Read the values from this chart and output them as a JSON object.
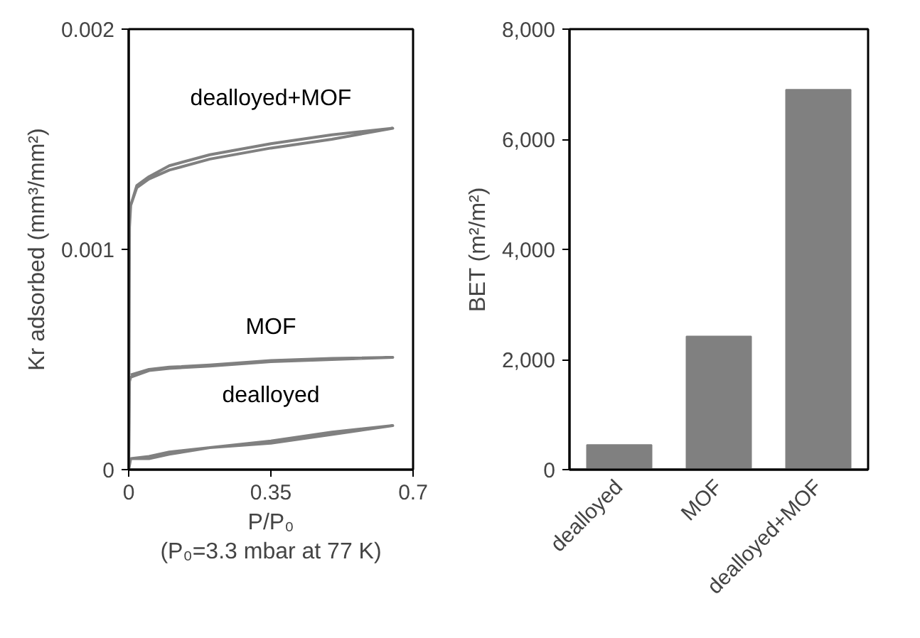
{
  "chart_data": [
    {
      "type": "line",
      "xlabel": "P/P₀\n(P₀=3.3 mbar at 77 K)",
      "ylabel": "Kr adsorbed (mm³/mm²)",
      "xlim": [
        0,
        0.7
      ],
      "ylim": [
        0,
        0.002
      ],
      "xticks": [
        0,
        0.35,
        0.7
      ],
      "yticks": [
        0,
        0.001,
        0.002
      ],
      "grid": false,
      "marker": "none",
      "line_style": "solid",
      "series": [
        {
          "name": "dealloyed+MOF",
          "color": "#808080",
          "x": [
            0,
            0.002,
            0.005,
            0.02,
            0.05,
            0.1,
            0.2,
            0.35,
            0.5,
            0.65,
            0.5,
            0.35,
            0.2,
            0.1,
            0.05,
            0.02,
            0.005
          ],
          "values": [
            0,
            0.0011,
            0.0012,
            0.00128,
            0.00132,
            0.00136,
            0.00141,
            0.00146,
            0.0015,
            0.00155,
            0.00152,
            0.00148,
            0.00143,
            0.00138,
            0.00133,
            0.00129,
            0.0012
          ]
        },
        {
          "name": "MOF",
          "color": "#808080",
          "x": [
            0,
            0.002,
            0.005,
            0.05,
            0.1,
            0.2,
            0.35,
            0.5,
            0.65,
            0.5,
            0.35,
            0.2,
            0.1,
            0.05,
            0.005
          ],
          "values": [
            0,
            0.0004,
            0.00042,
            0.00045,
            0.00046,
            0.00047,
            0.00049,
            0.0005,
            0.00051,
            0.000505,
            0.000495,
            0.000475,
            0.000465,
            0.000455,
            0.00043
          ]
        },
        {
          "name": "dealloyed",
          "color": "#808080",
          "x": [
            0,
            0.005,
            0.05,
            0.1,
            0.2,
            0.35,
            0.5,
            0.65,
            0.5,
            0.35,
            0.2,
            0.1,
            0.05,
            0.005
          ],
          "values": [
            0,
            5e-05,
            5e-05,
            7e-05,
            0.0001,
            0.00012,
            0.00016,
            0.0002,
            0.00017,
            0.00013,
            0.0001,
            8e-05,
            6e-05,
            5e-05
          ]
        }
      ]
    },
    {
      "type": "bar",
      "ylabel": "BET (m²/m²)",
      "categories": [
        "dealloyed",
        "MOF",
        "dealloyed+MOF"
      ],
      "values": [
        450,
        2420,
        6900
      ],
      "color": "#808080",
      "ylim": [
        0,
        8000
      ],
      "yticks": [
        0,
        {
          "value": 2000,
          "label": "2,000"
        },
        {
          "value": 4000,
          "label": "4,000"
        },
        {
          "value": 6000,
          "label": "6,000"
        },
        {
          "value": 8000,
          "label": "8,000"
        }
      ],
      "grid": false
    }
  ]
}
